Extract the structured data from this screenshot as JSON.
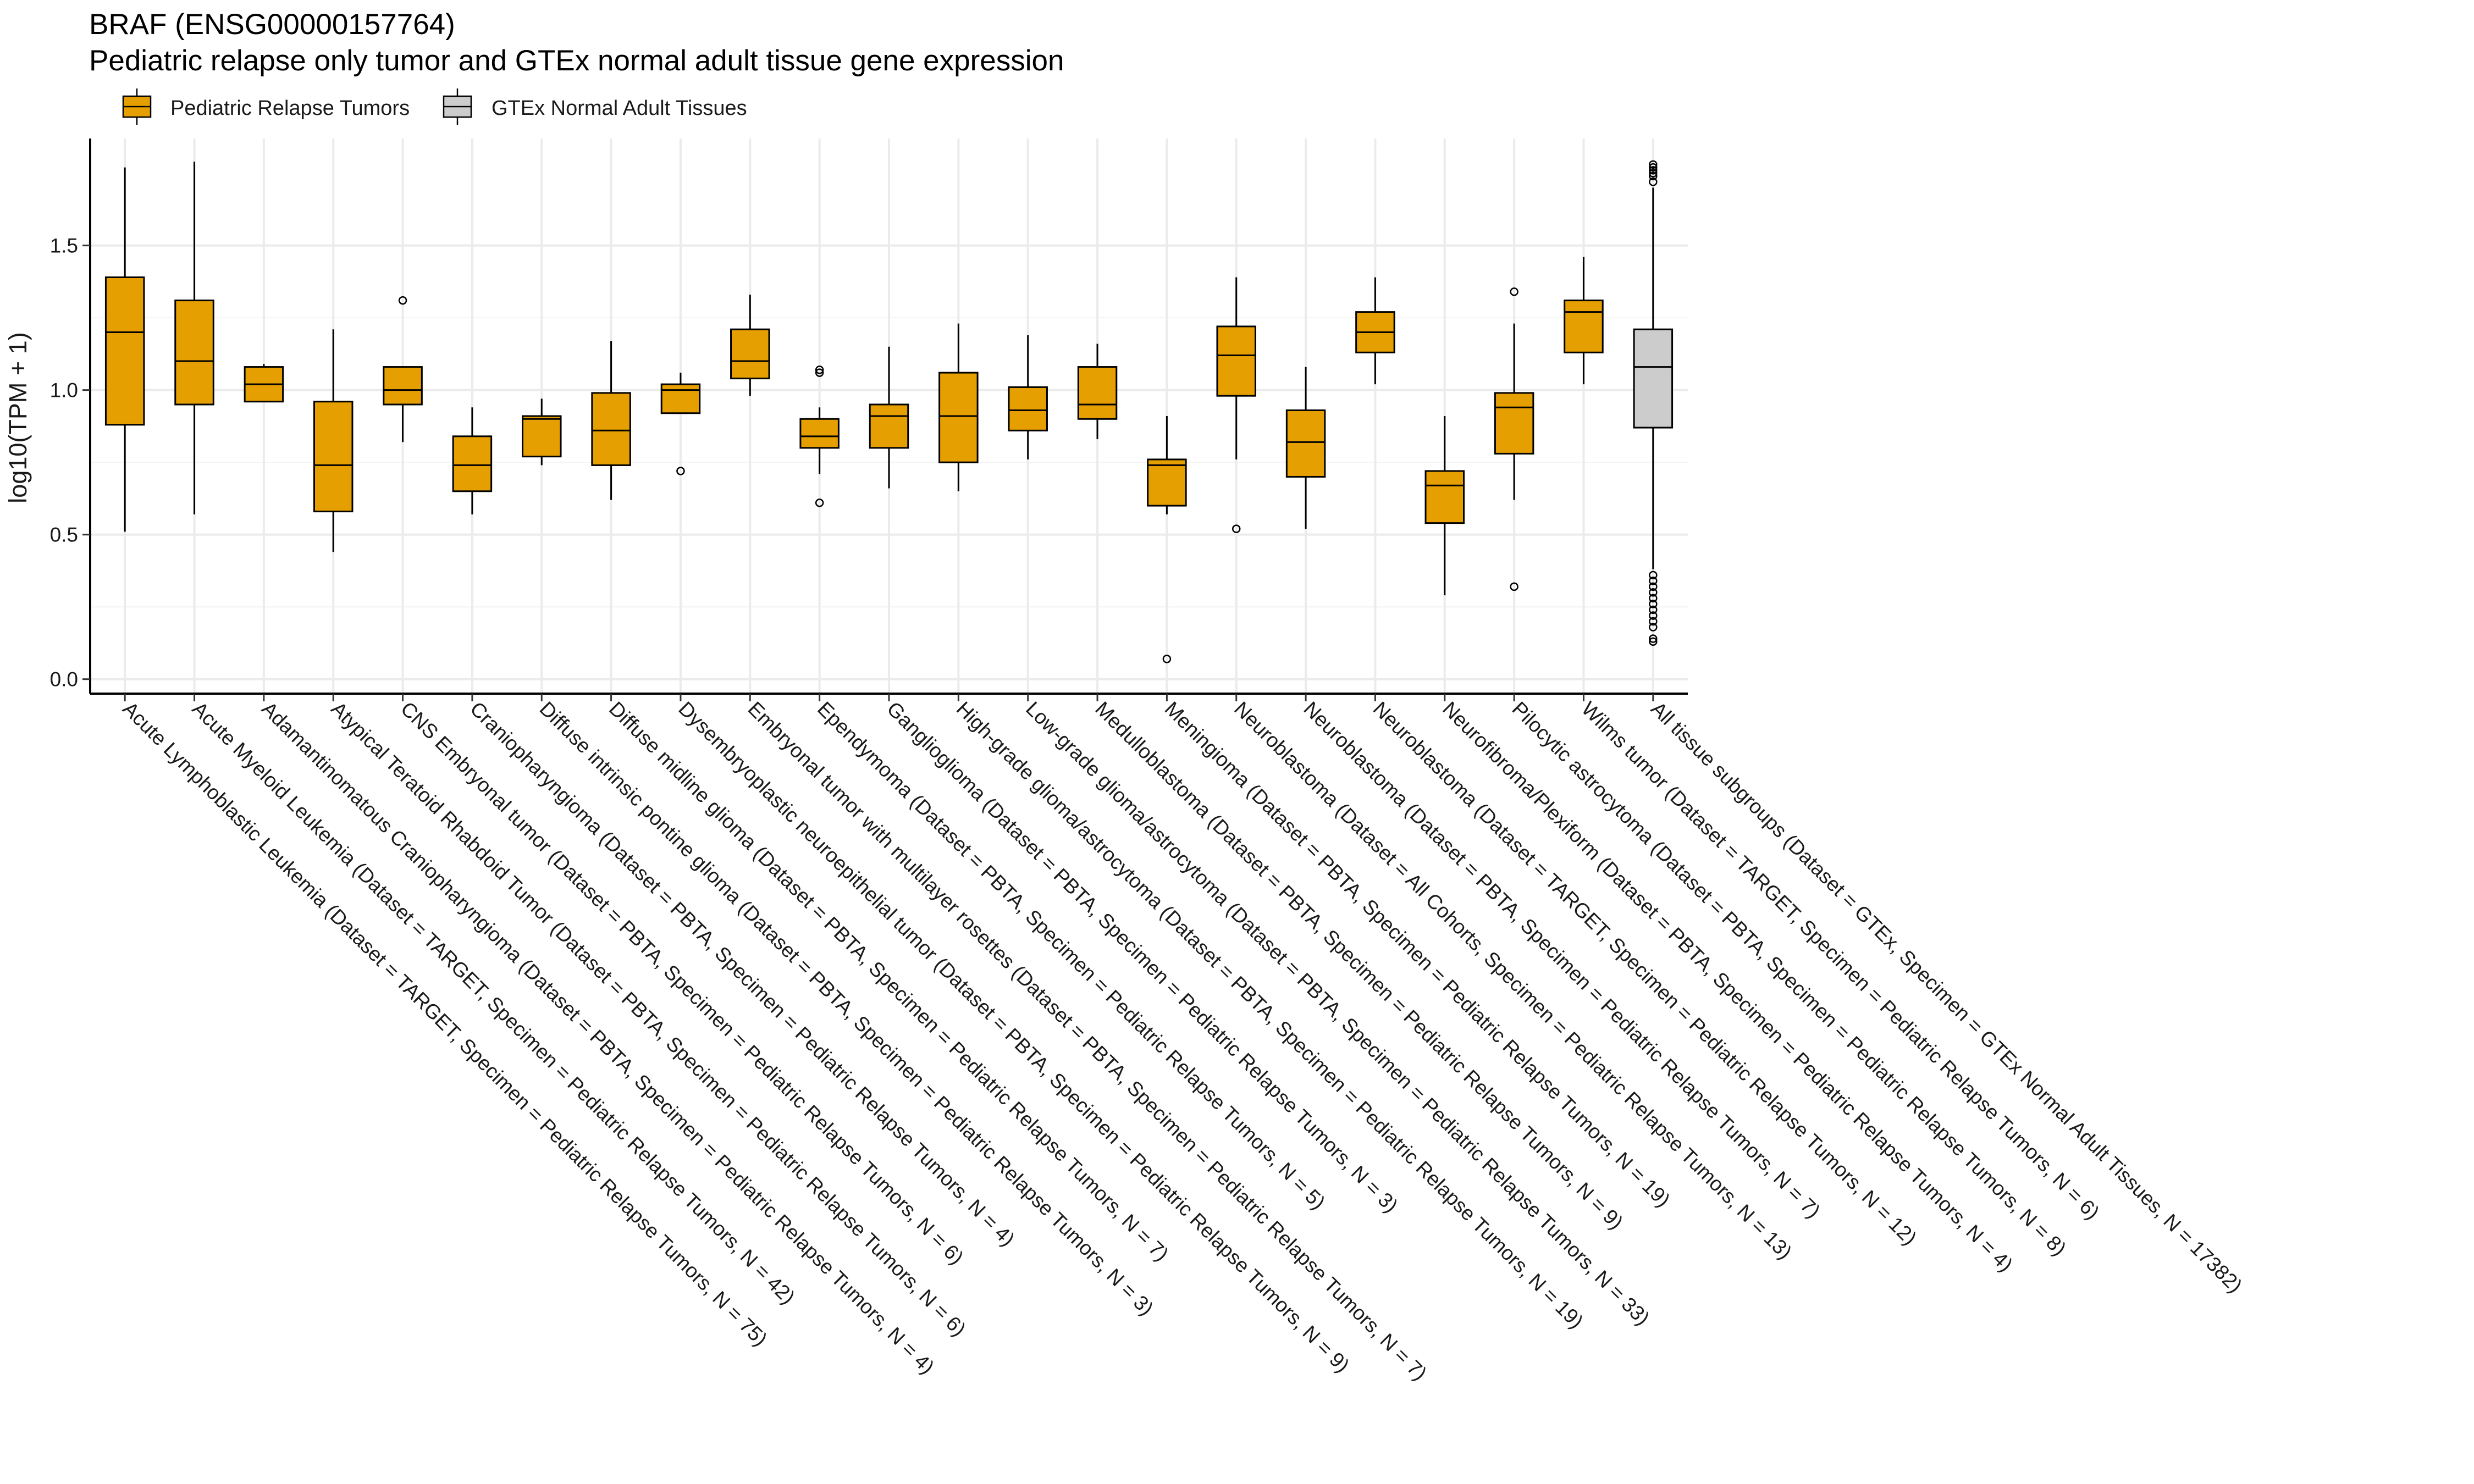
{
  "chart_data": {
    "type": "box",
    "title": "BRAF (ENSG00000157764)",
    "subtitle": "Pediatric relapse only tumor and GTEx normal adult tissue gene expression",
    "xlabel": "",
    "ylabel": "log10(TPM + 1)",
    "ylim": [
      -0.05,
      1.87
    ],
    "yticks": [
      0.0,
      0.5,
      1.0,
      1.5
    ],
    "ytick_labels": [
      "0.0",
      "0.5",
      "1.0",
      "1.5"
    ],
    "grid": true,
    "legend": {
      "position": "top-left",
      "entries": [
        {
          "label": "Pediatric Relapse Tumors",
          "color": "#E69F00"
        },
        {
          "label": "GTEx Normal Adult Tissues",
          "color": "#CCCCCC"
        }
      ]
    },
    "series": [
      {
        "name": "Acute Lymphoblastic Leukemia  (Dataset = TARGET, Specimen = Pediatric Relapse Tumors, N = 75)",
        "group": 0,
        "whisker_low": 0.51,
        "q1": 0.88,
        "median": 1.2,
        "q3": 1.39,
        "whisker_high": 1.77,
        "outliers": []
      },
      {
        "name": "Acute Myeloid Leukemia  (Dataset = TARGET, Specimen = Pediatric Relapse Tumors, N = 42)",
        "group": 0,
        "whisker_low": 0.57,
        "q1": 0.95,
        "median": 1.1,
        "q3": 1.31,
        "whisker_high": 1.79,
        "outliers": []
      },
      {
        "name": "Adamantinomatous Craniopharyngioma  (Dataset = PBTA, Specimen = Pediatric Relapse Tumors, N = 4)",
        "group": 0,
        "whisker_low": 0.96,
        "q1": 0.96,
        "median": 1.02,
        "q3": 1.08,
        "whisker_high": 1.09,
        "outliers": []
      },
      {
        "name": "Atypical Teratoid Rhabdoid Tumor  (Dataset = PBTA, Specimen = Pediatric Relapse Tumors, N = 6)",
        "group": 0,
        "whisker_low": 0.44,
        "q1": 0.58,
        "median": 0.74,
        "q3": 0.96,
        "whisker_high": 1.21,
        "outliers": []
      },
      {
        "name": "CNS Embryonal tumor  (Dataset = PBTA, Specimen = Pediatric Relapse Tumors, N = 6)",
        "group": 0,
        "whisker_low": 0.82,
        "q1": 0.95,
        "median": 1.0,
        "q3": 1.08,
        "whisker_high": 1.08,
        "outliers": [
          1.31
        ]
      },
      {
        "name": "Craniopharyngioma  (Dataset = PBTA, Specimen = Pediatric Relapse Tumors, N = 4)",
        "group": 0,
        "whisker_low": 0.57,
        "q1": 0.65,
        "median": 0.74,
        "q3": 0.84,
        "whisker_high": 0.94,
        "outliers": []
      },
      {
        "name": "Diffuse intrinsic pontine glioma  (Dataset = PBTA, Specimen = Pediatric Relapse Tumors, N = 3)",
        "group": 0,
        "whisker_low": 0.74,
        "q1": 0.77,
        "median": 0.9,
        "q3": 0.91,
        "whisker_high": 0.97,
        "outliers": []
      },
      {
        "name": "Diffuse midline glioma  (Dataset = PBTA, Specimen = Pediatric Relapse Tumors, N = 7)",
        "group": 0,
        "whisker_low": 0.62,
        "q1": 0.74,
        "median": 0.86,
        "q3": 0.99,
        "whisker_high": 1.17,
        "outliers": []
      },
      {
        "name": "Dysembryoplastic neuroepithelial tumor  (Dataset = PBTA, Specimen = Pediatric Relapse Tumors, N = 9)",
        "group": 0,
        "whisker_low": 0.92,
        "q1": 0.92,
        "median": 1.0,
        "q3": 1.02,
        "whisker_high": 1.06,
        "outliers": [
          0.72
        ]
      },
      {
        "name": "Embryonal tumor with multilayer rosettes  (Dataset = PBTA, Specimen = Pediatric Relapse Tumors, N = 7)",
        "group": 0,
        "whisker_low": 0.98,
        "q1": 1.04,
        "median": 1.1,
        "q3": 1.21,
        "whisker_high": 1.33,
        "outliers": []
      },
      {
        "name": "Ependymoma  (Dataset = PBTA, Specimen = Pediatric Relapse Tumors, N = 5)",
        "group": 0,
        "whisker_low": 0.71,
        "q1": 0.8,
        "median": 0.84,
        "q3": 0.9,
        "whisker_high": 0.94,
        "outliers": [
          1.06,
          1.07,
          0.61
        ]
      },
      {
        "name": "Ganglioglioma  (Dataset = PBTA, Specimen = Pediatric Relapse Tumors, N = 3)",
        "group": 0,
        "whisker_low": 0.66,
        "q1": 0.8,
        "median": 0.91,
        "q3": 0.95,
        "whisker_high": 1.15,
        "outliers": []
      },
      {
        "name": "High-grade glioma/astrocytoma  (Dataset = PBTA, Specimen = Pediatric Relapse Tumors, N = 19)",
        "group": 0,
        "whisker_low": 0.65,
        "q1": 0.75,
        "median": 0.91,
        "q3": 1.06,
        "whisker_high": 1.23,
        "outliers": []
      },
      {
        "name": "Low-grade glioma/astrocytoma  (Dataset = PBTA, Specimen = Pediatric Relapse Tumors, N = 33)",
        "group": 0,
        "whisker_low": 0.76,
        "q1": 0.86,
        "median": 0.93,
        "q3": 1.01,
        "whisker_high": 1.19,
        "outliers": []
      },
      {
        "name": "Medulloblastoma  (Dataset = PBTA, Specimen = Pediatric Relapse Tumors, N = 9)",
        "group": 0,
        "whisker_low": 0.83,
        "q1": 0.9,
        "median": 0.95,
        "q3": 1.08,
        "whisker_high": 1.16,
        "outliers": []
      },
      {
        "name": "Meningioma  (Dataset = PBTA, Specimen = Pediatric Relapse Tumors, N = 19)",
        "group": 0,
        "whisker_low": 0.57,
        "q1": 0.6,
        "median": 0.74,
        "q3": 0.76,
        "whisker_high": 0.91,
        "outliers": [
          0.07
        ]
      },
      {
        "name": "Neuroblastoma  (Dataset = All Cohorts, Specimen = Pediatric Relapse Tumors, N = 13)",
        "group": 0,
        "whisker_low": 0.76,
        "q1": 0.98,
        "median": 1.12,
        "q3": 1.22,
        "whisker_high": 1.39,
        "outliers": [
          0.52
        ]
      },
      {
        "name": "Neuroblastoma  (Dataset = PBTA, Specimen = Pediatric Relapse Tumors, N = 7)",
        "group": 0,
        "whisker_low": 0.52,
        "q1": 0.7,
        "median": 0.82,
        "q3": 0.93,
        "whisker_high": 1.08,
        "outliers": []
      },
      {
        "name": "Neuroblastoma  (Dataset = TARGET, Specimen = Pediatric Relapse Tumors, N = 12)",
        "group": 0,
        "whisker_low": 1.02,
        "q1": 1.13,
        "median": 1.2,
        "q3": 1.27,
        "whisker_high": 1.39,
        "outliers": []
      },
      {
        "name": "Neurofibroma/Plexiform  (Dataset = PBTA, Specimen = Pediatric Relapse Tumors, N = 4)",
        "group": 0,
        "whisker_low": 0.29,
        "q1": 0.54,
        "median": 0.67,
        "q3": 0.72,
        "whisker_high": 0.91,
        "outliers": []
      },
      {
        "name": "Pilocytic astrocytoma  (Dataset = PBTA, Specimen = Pediatric Relapse Tumors, N = 8)",
        "group": 0,
        "whisker_low": 0.62,
        "q1": 0.78,
        "median": 0.94,
        "q3": 0.99,
        "whisker_high": 1.23,
        "outliers": [
          1.34,
          0.32
        ]
      },
      {
        "name": "Wilms tumor  (Dataset = TARGET, Specimen = Pediatric Relapse Tumors, N = 6)",
        "group": 0,
        "whisker_low": 1.02,
        "q1": 1.13,
        "median": 1.27,
        "q3": 1.31,
        "whisker_high": 1.46,
        "outliers": []
      },
      {
        "name": "All tissue subgroups  (Dataset = GTEx, Specimen = GTEx Normal Adult Tissues, N = 17382)",
        "group": 1,
        "whisker_low": 0.38,
        "q1": 0.87,
        "median": 1.08,
        "q3": 1.21,
        "whisker_high": 1.7,
        "outliers": [
          1.72,
          1.74,
          1.75,
          1.76,
          1.77,
          1.78,
          0.36,
          0.34,
          0.32,
          0.3,
          0.28,
          0.26,
          0.24,
          0.22,
          0.2,
          0.18,
          0.14,
          0.13
        ]
      }
    ]
  }
}
